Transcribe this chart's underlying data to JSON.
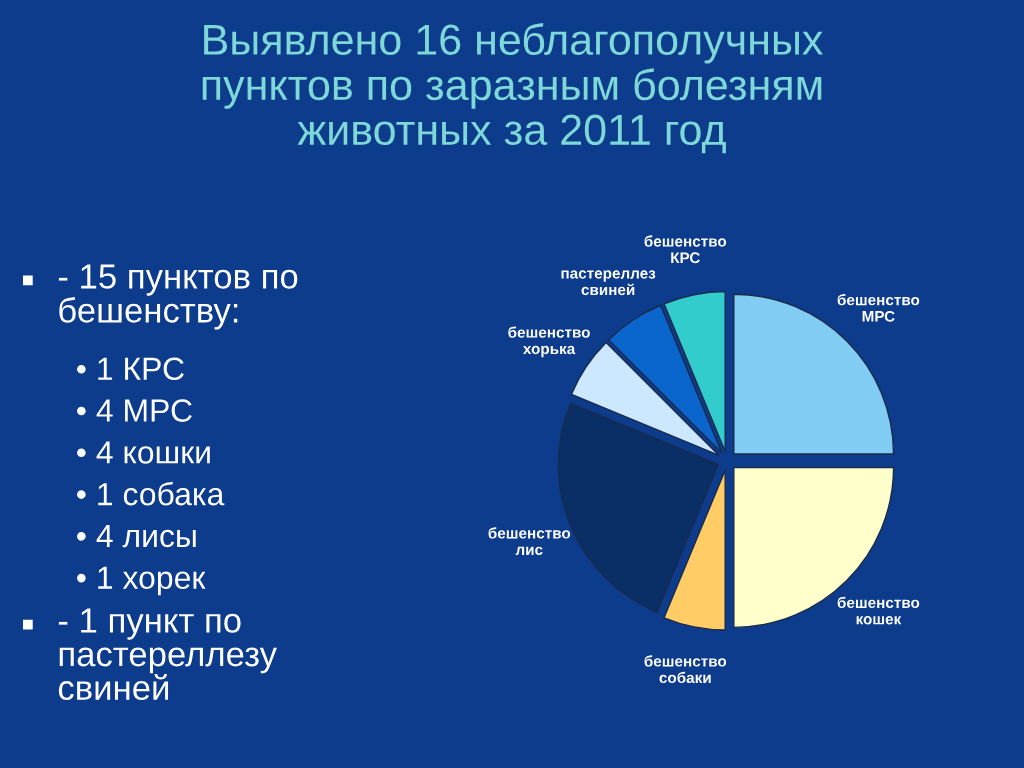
{
  "chart_data": [
    {
      "type": "other",
      "title": "Выявлено 16 неблагополучных\nпунктов по заразным болезням\nживотных за 2011 год",
      "annotations": [
        "- 15 пунктов по\nбешенству:",
        "• 1 КРС",
        "• 4 МРС",
        "• 4 кошки",
        "• 1 собака",
        "• 4 лисы",
        "• 1 хорек",
        "- 1 пункт по\nпастереллезу\nсвиней"
      ]
    },
    {
      "type": "pie",
      "categories": [
        "бешенство МРС",
        "бешенство кошек",
        "бешенство собаки",
        "бешенство лис",
        "бешенство хорька",
        "пастереллез свиней",
        "бешенство КРС"
      ],
      "values": [
        25,
        25,
        6.25,
        25,
        6.25,
        6.25,
        6.25
      ],
      "colors": [
        "#80ccf2",
        "#ffffcc",
        "#ffcc66",
        "#0a2f66",
        "#cce8ff",
        "#0a66cc",
        "#33cccc"
      ]
    }
  ]
}
